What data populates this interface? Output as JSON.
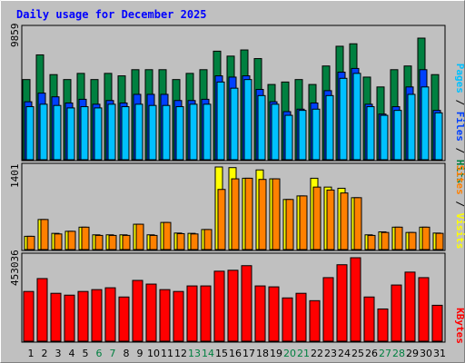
{
  "chart_data": [
    {
      "type": "bar",
      "title": "Daily usage for December 2025",
      "ytick_label": "9859",
      "categories": [
        "1",
        "2",
        "3",
        "4",
        "5",
        "6",
        "7",
        "8",
        "9",
        "10",
        "11",
        "12",
        "13",
        "14",
        "15",
        "16",
        "17",
        "18",
        "19",
        "20",
        "21",
        "22",
        "23",
        "24",
        "25",
        "26",
        "27",
        "28",
        "29",
        "30",
        "31"
      ],
      "weekend_days": [
        "6",
        "7",
        "13",
        "14",
        "20",
        "21",
        "27",
        "28"
      ],
      "series": [
        {
          "name": "Hits",
          "color": "#008040",
          "values": [
            6500,
            8500,
            6900,
            6500,
            7000,
            6500,
            7000,
            6800,
            7300,
            7300,
            7300,
            6500,
            7000,
            7300,
            8800,
            8400,
            8900,
            8200,
            6100,
            6300,
            6500,
            6100,
            7600,
            9200,
            9400,
            6700,
            5900,
            7300,
            7600,
            9859,
            6900
          ]
        },
        {
          "name": "Files",
          "color": "#0040ff",
          "values": [
            4700,
            5400,
            5100,
            4600,
            4900,
            4500,
            4800,
            4600,
            5300,
            5300,
            5300,
            4800,
            4800,
            4900,
            6800,
            6700,
            6800,
            5700,
            4700,
            3900,
            4100,
            4600,
            5600,
            7100,
            7400,
            4500,
            3700,
            4300,
            5900,
            7300,
            4000
          ]
        },
        {
          "name": "Pages",
          "color": "#00c0ff",
          "values": [
            4300,
            4500,
            4400,
            4200,
            4300,
            4200,
            4500,
            4300,
            4500,
            4400,
            4400,
            4300,
            4500,
            4500,
            6300,
            5800,
            6500,
            5200,
            4500,
            3600,
            4000,
            4100,
            5200,
            6600,
            7000,
            4300,
            3600,
            4000,
            5300,
            5900,
            3800
          ]
        }
      ]
    },
    {
      "type": "bar",
      "ytick_label": "1401",
      "categories": [
        "1",
        "2",
        "3",
        "4",
        "5",
        "6",
        "7",
        "8",
        "9",
        "10",
        "11",
        "12",
        "13",
        "14",
        "15",
        "16",
        "17",
        "18",
        "19",
        "20",
        "21",
        "22",
        "23",
        "24",
        "25",
        "26",
        "27",
        "28",
        "29",
        "30",
        "31"
      ],
      "series": [
        {
          "name": "Visits",
          "color": "#ffff00",
          "values": [
            225,
            510,
            275,
            310,
            380,
            250,
            250,
            250,
            430,
            250,
            460,
            280,
            275,
            340,
            1401,
            1390,
            1210,
            1351,
            1200,
            850,
            910,
            1210,
            1060,
            1040,
            880,
            250,
            300,
            380,
            290,
            380,
            280
          ]
        },
        {
          "name": "Sites",
          "color": "#ff8000",
          "values": [
            225,
            510,
            265,
            310,
            380,
            240,
            240,
            240,
            430,
            240,
            460,
            270,
            265,
            340,
            1020,
            1200,
            1210,
            1190,
            1200,
            850,
            910,
            1060,
            1010,
            960,
            880,
            240,
            290,
            380,
            290,
            380,
            275
          ]
        }
      ]
    },
    {
      "type": "bar",
      "ytick_label": "453036",
      "categories": [
        "1",
        "2",
        "3",
        "4",
        "5",
        "6",
        "7",
        "8",
        "9",
        "10",
        "11",
        "12",
        "13",
        "14",
        "15",
        "16",
        "17",
        "18",
        "19",
        "20",
        "21",
        "22",
        "23",
        "24",
        "25",
        "26",
        "27",
        "28",
        "29",
        "30",
        "31"
      ],
      "series": [
        {
          "name": "KBytes",
          "color": "#ff0000",
          "values": [
            270000,
            340000,
            260000,
            250000,
            270000,
            280000,
            290000,
            240000,
            330000,
            310000,
            280000,
            270000,
            300000,
            300000,
            380000,
            385000,
            410000,
            300000,
            295000,
            235000,
            260000,
            220000,
            345000,
            415000,
            453036,
            240000,
            175000,
            305000,
            375000,
            345000,
            195000
          ]
        }
      ]
    }
  ]
}
